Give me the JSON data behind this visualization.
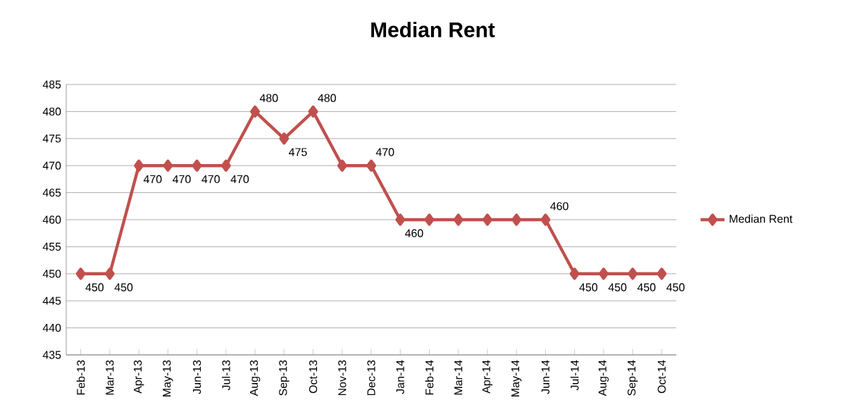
{
  "chart_data": {
    "type": "line",
    "title": "Median Rent",
    "categories": [
      "Feb-13",
      "Mar-13",
      "Apr-13",
      "May-13",
      "Jun-13",
      "Jul-13",
      "Aug-13",
      "Sep-13",
      "Oct-13",
      "Nov-13",
      "Dec-13",
      "Jan-14",
      "Feb-14",
      "Mar-14",
      "Apr-14",
      "May-14",
      "Jun-14",
      "Jul-14",
      "Aug-14",
      "Sep-14",
      "Oct-14"
    ],
    "series": [
      {
        "name": "Median Rent",
        "color": "#c0504d",
        "values": [
          450,
          450,
          470,
          470,
          470,
          470,
          480,
          475,
          480,
          470,
          470,
          460,
          460,
          460,
          460,
          460,
          460,
          450,
          450,
          450,
          450
        ],
        "value_labels": [
          "450",
          "450",
          "470",
          "470",
          "470",
          "470",
          "480",
          "475",
          "480",
          null,
          "470",
          "460",
          null,
          null,
          null,
          null,
          "460",
          "450",
          "450",
          "450",
          "450"
        ]
      }
    ],
    "ylim": [
      435,
      485
    ],
    "yticks": [
      435,
      440,
      445,
      450,
      455,
      460,
      465,
      470,
      475,
      480,
      485
    ],
    "grid": "y",
    "legend": "right",
    "marker": "diamond",
    "line_style": "solid"
  }
}
